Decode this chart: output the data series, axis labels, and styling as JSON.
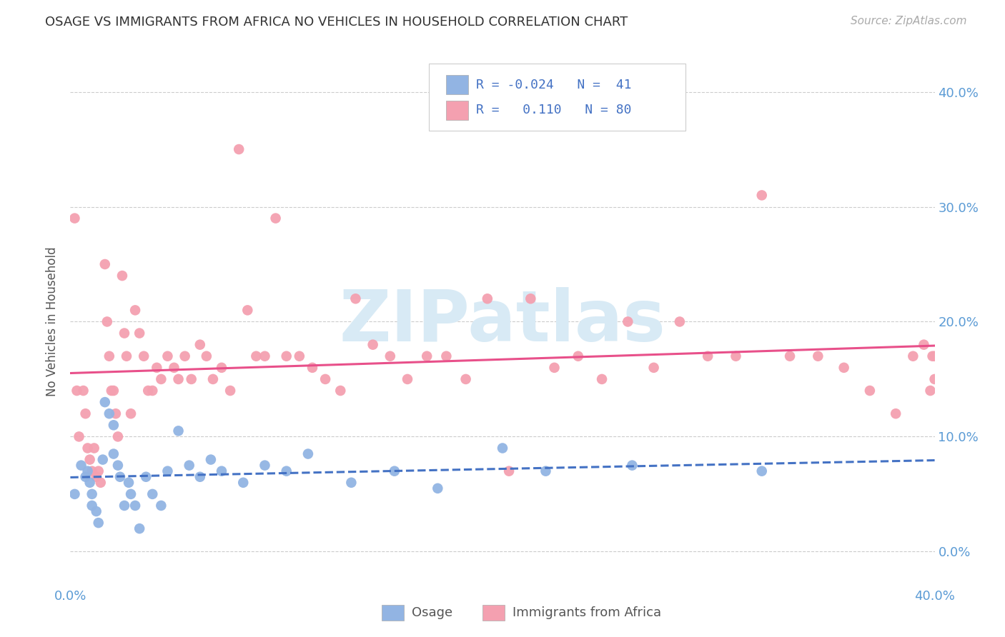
{
  "title": "OSAGE VS IMMIGRANTS FROM AFRICA NO VEHICLES IN HOUSEHOLD CORRELATION CHART",
  "source": "Source: ZipAtlas.com",
  "ylabel": "No Vehicles in Household",
  "xlim": [
    0.0,
    0.4
  ],
  "ylim": [
    -0.03,
    0.43
  ],
  "ytick_vals": [
    0.0,
    0.1,
    0.2,
    0.3,
    0.4
  ],
  "ytick_labels": [
    "0.0%",
    "10.0%",
    "20.0%",
    "30.0%",
    "40.0%"
  ],
  "xtick_vals": [
    0.0,
    0.4
  ],
  "xtick_labels": [
    "0.0%",
    "40.0%"
  ],
  "legend_label1": "Osage",
  "legend_label2": "Immigrants from Africa",
  "blue_color": "#92B4E3",
  "pink_color": "#F4A0B0",
  "blue_line_color": "#4472C4",
  "pink_line_color": "#E8508A",
  "watermark": "ZIPatlas",
  "watermark_color": "#D8EAF5",
  "background_color": "#ffffff",
  "grid_color": "#cccccc",
  "title_color": "#333333",
  "axis_color": "#5B9BD5",
  "osage_x": [
    0.002,
    0.005,
    0.007,
    0.008,
    0.009,
    0.01,
    0.01,
    0.012,
    0.013,
    0.015,
    0.016,
    0.018,
    0.02,
    0.02,
    0.022,
    0.023,
    0.025,
    0.027,
    0.028,
    0.03,
    0.032,
    0.035,
    0.038,
    0.042,
    0.045,
    0.05,
    0.055,
    0.06,
    0.065,
    0.07,
    0.08,
    0.09,
    0.1,
    0.11,
    0.13,
    0.15,
    0.17,
    0.2,
    0.22,
    0.26,
    0.32
  ],
  "osage_y": [
    0.05,
    0.075,
    0.065,
    0.07,
    0.06,
    0.05,
    0.04,
    0.035,
    0.025,
    0.08,
    0.13,
    0.12,
    0.11,
    0.085,
    0.075,
    0.065,
    0.04,
    0.06,
    0.05,
    0.04,
    0.02,
    0.065,
    0.05,
    0.04,
    0.07,
    0.105,
    0.075,
    0.065,
    0.08,
    0.07,
    0.06,
    0.075,
    0.07,
    0.085,
    0.06,
    0.07,
    0.055,
    0.09,
    0.07,
    0.075,
    0.07
  ],
  "africa_x": [
    0.002,
    0.003,
    0.004,
    0.006,
    0.007,
    0.008,
    0.009,
    0.01,
    0.011,
    0.012,
    0.013,
    0.014,
    0.016,
    0.017,
    0.018,
    0.019,
    0.02,
    0.021,
    0.022,
    0.024,
    0.025,
    0.026,
    0.028,
    0.03,
    0.032,
    0.034,
    0.036,
    0.038,
    0.04,
    0.042,
    0.045,
    0.048,
    0.05,
    0.053,
    0.056,
    0.06,
    0.063,
    0.066,
    0.07,
    0.074,
    0.078,
    0.082,
    0.086,
    0.09,
    0.095,
    0.1,
    0.106,
    0.112,
    0.118,
    0.125,
    0.132,
    0.14,
    0.148,
    0.156,
    0.165,
    0.174,
    0.183,
    0.193,
    0.203,
    0.213,
    0.224,
    0.235,
    0.246,
    0.258,
    0.27,
    0.282,
    0.295,
    0.308,
    0.32,
    0.333,
    0.346,
    0.358,
    0.37,
    0.382,
    0.39,
    0.395,
    0.398,
    0.399,
    0.4,
    0.4
  ],
  "africa_y": [
    0.29,
    0.14,
    0.1,
    0.14,
    0.12,
    0.09,
    0.08,
    0.07,
    0.09,
    0.065,
    0.07,
    0.06,
    0.25,
    0.2,
    0.17,
    0.14,
    0.14,
    0.12,
    0.1,
    0.24,
    0.19,
    0.17,
    0.12,
    0.21,
    0.19,
    0.17,
    0.14,
    0.14,
    0.16,
    0.15,
    0.17,
    0.16,
    0.15,
    0.17,
    0.15,
    0.18,
    0.17,
    0.15,
    0.16,
    0.14,
    0.35,
    0.21,
    0.17,
    0.17,
    0.29,
    0.17,
    0.17,
    0.16,
    0.15,
    0.14,
    0.22,
    0.18,
    0.17,
    0.15,
    0.17,
    0.17,
    0.15,
    0.22,
    0.07,
    0.22,
    0.16,
    0.17,
    0.15,
    0.2,
    0.16,
    0.2,
    0.17,
    0.17,
    0.31,
    0.17,
    0.17,
    0.16,
    0.14,
    0.12,
    0.17,
    0.18,
    0.14,
    0.17,
    0.15,
    0.17
  ]
}
